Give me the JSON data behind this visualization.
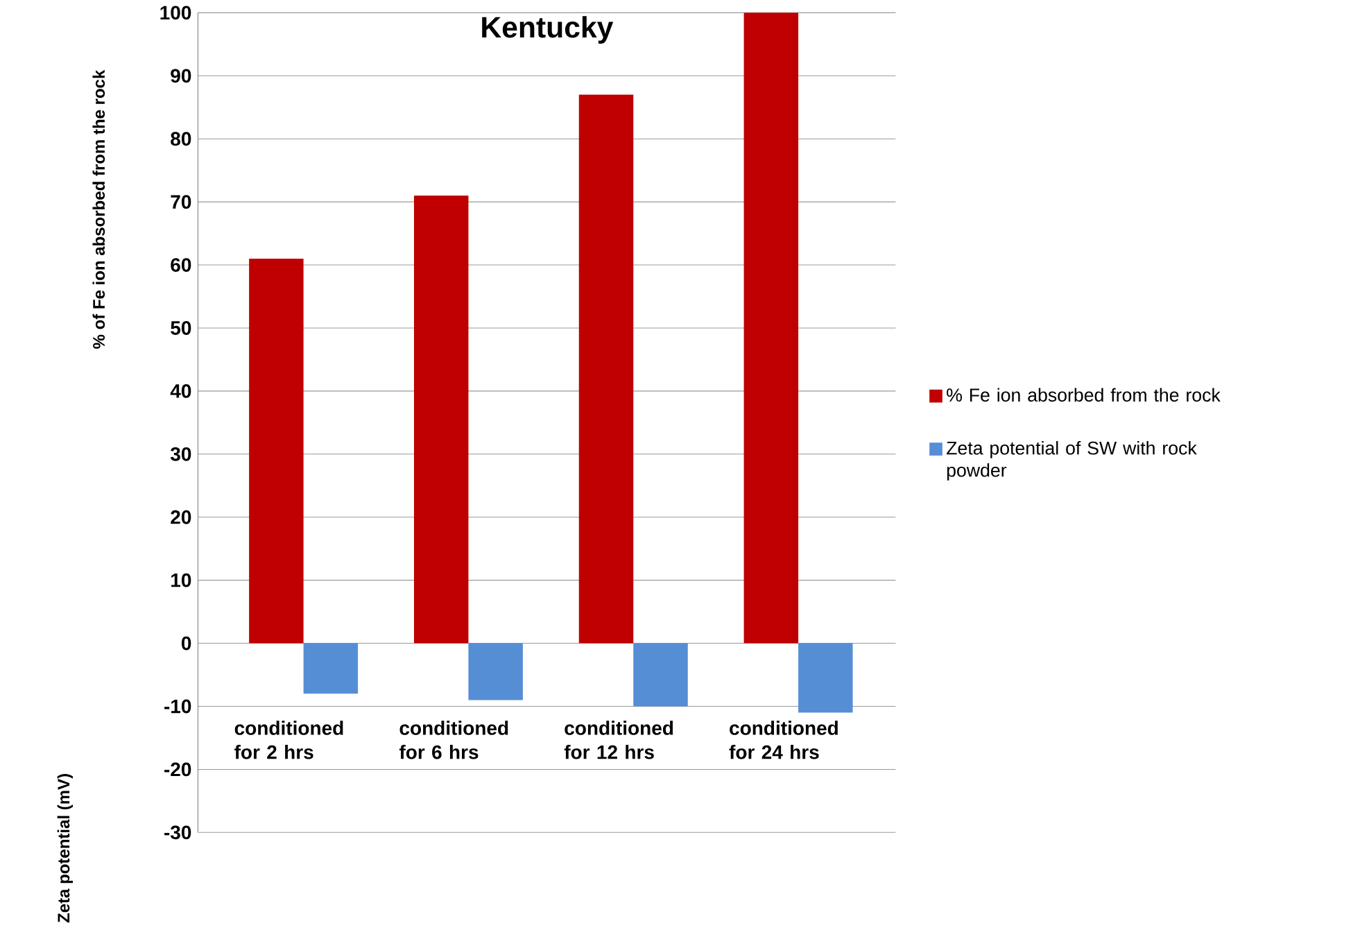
{
  "chart_data": {
    "type": "bar",
    "title": "Kentucky",
    "ylabel": "% of Fe ion absorbed from the rock",
    "annotations": [
      "Zeta potential (mV)"
    ],
    "categories": [
      "conditioned for 2 hrs",
      "conditioned for 6 hrs",
      "conditioned for 12 hrs",
      "conditioned for 24 hrs"
    ],
    "series": [
      {
        "name": "% Fe ion absorbed from the rock",
        "color": "#c00000",
        "values": [
          61,
          71,
          87,
          100
        ]
      },
      {
        "name": "Zeta potential of SW with rock powder",
        "color": "#558ed5",
        "values": [
          -8,
          -9,
          -10,
          -11
        ]
      }
    ],
    "ylim": [
      -30,
      100
    ],
    "yticks": [
      -30,
      -20,
      -10,
      0,
      10,
      20,
      30,
      40,
      50,
      60,
      70,
      80,
      90,
      100
    ],
    "grid": "y",
    "legend": "right"
  }
}
